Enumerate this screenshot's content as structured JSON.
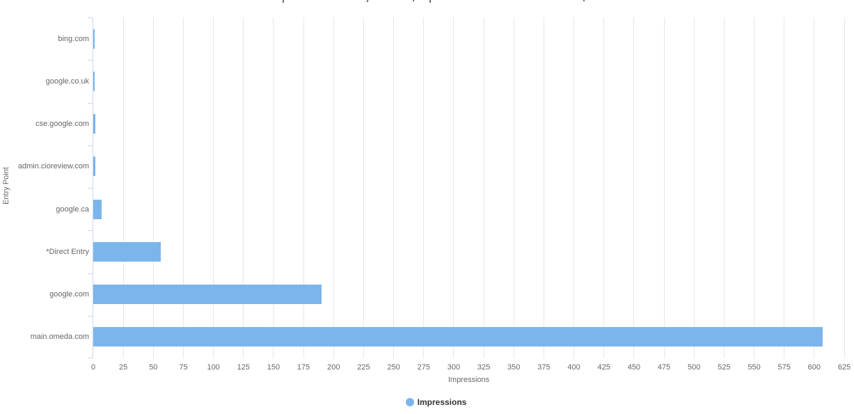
{
  "chart_data": {
    "type": "bar",
    "orientation": "horizontal",
    "categories": [
      "bing.com",
      "google.co.uk",
      "cse.google.com",
      "admin.cioreview.com",
      "google.ca",
      "*Direct Entry",
      "google.com",
      "main.omeda.com"
    ],
    "series": [
      {
        "name": "Impressions",
        "color": "#7cb5ec",
        "values": [
          1,
          1,
          2,
          2,
          7,
          56,
          190,
          607
        ]
      }
    ],
    "xlabel": "Impressions",
    "ylabel": "Entry Point",
    "xlim": [
      0,
      625
    ],
    "xtick_step": 25,
    "xticks": [
      0,
      25,
      50,
      75,
      100,
      125,
      150,
      175,
      200,
      225,
      250,
      275,
      300,
      325,
      350,
      375,
      400,
      425,
      450,
      475,
      500,
      525,
      550,
      575,
      600,
      625
    ],
    "grid": true,
    "legend": {
      "position": "bottom-center",
      "items": [
        {
          "label": "Impressions",
          "color": "#7cb5ec"
        }
      ]
    }
  },
  "colors": {
    "bar": "#7cb5ec",
    "gridline": "#e6e6e6",
    "axis_line": "#ccd6eb",
    "tick_label": "#666666",
    "axis_title": "#666666",
    "legend_text": "#333333",
    "background": "#ffffff"
  }
}
